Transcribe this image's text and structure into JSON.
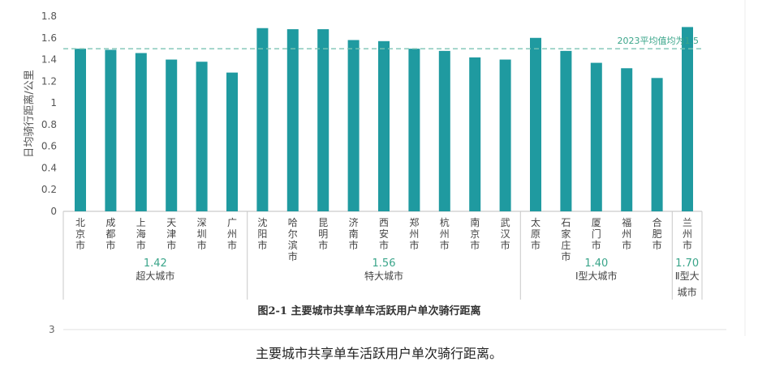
{
  "chart_data": {
    "type": "bar",
    "ylabel": "日均骑行距离/公里",
    "ylim": [
      0,
      1.8
    ],
    "yticks": [
      "0",
      "0.2",
      "0.4",
      "0.6",
      "0.8",
      "1",
      "1.2",
      "1.4",
      "1.6",
      "1.8"
    ],
    "bar_color": "#1f9aa0",
    "reference_line": {
      "value": 1.5,
      "label": "2023平均值均为1.5",
      "color": "#7cc4b4"
    },
    "categories": [
      "北京市",
      "成都市",
      "上海市",
      "天津市",
      "深圳市",
      "广州市",
      "沈阳市",
      "哈尔滨市",
      "昆明市",
      "济南市",
      "西安市",
      "郑州市",
      "杭州市",
      "南京市",
      "武汉市",
      "太原市",
      "石家庄市",
      "厦门市",
      "福州市",
      "合肥市",
      "兰州市"
    ],
    "values": [
      1.5,
      1.49,
      1.46,
      1.4,
      1.38,
      1.28,
      1.69,
      1.68,
      1.68,
      1.58,
      1.57,
      1.5,
      1.48,
      1.42,
      1.4,
      1.6,
      1.48,
      1.37,
      1.32,
      1.23,
      1.7
    ],
    "groups": [
      {
        "name": "超大城市",
        "avg": "1.42",
        "count": 6
      },
      {
        "name": "特大城市",
        "avg": "1.56",
        "count": 9
      },
      {
        "name": "Ⅰ型大城市",
        "avg": "1.40",
        "count": 5
      },
      {
        "name": "Ⅱ型大城市",
        "avg": "1.70",
        "count": 1
      }
    ],
    "figure_title": "图2-1  主要城市共享单车活跃用户单次骑行距离"
  },
  "page_number": "3",
  "caption": "主要城市共享单车活跃用户单次骑行距离。"
}
